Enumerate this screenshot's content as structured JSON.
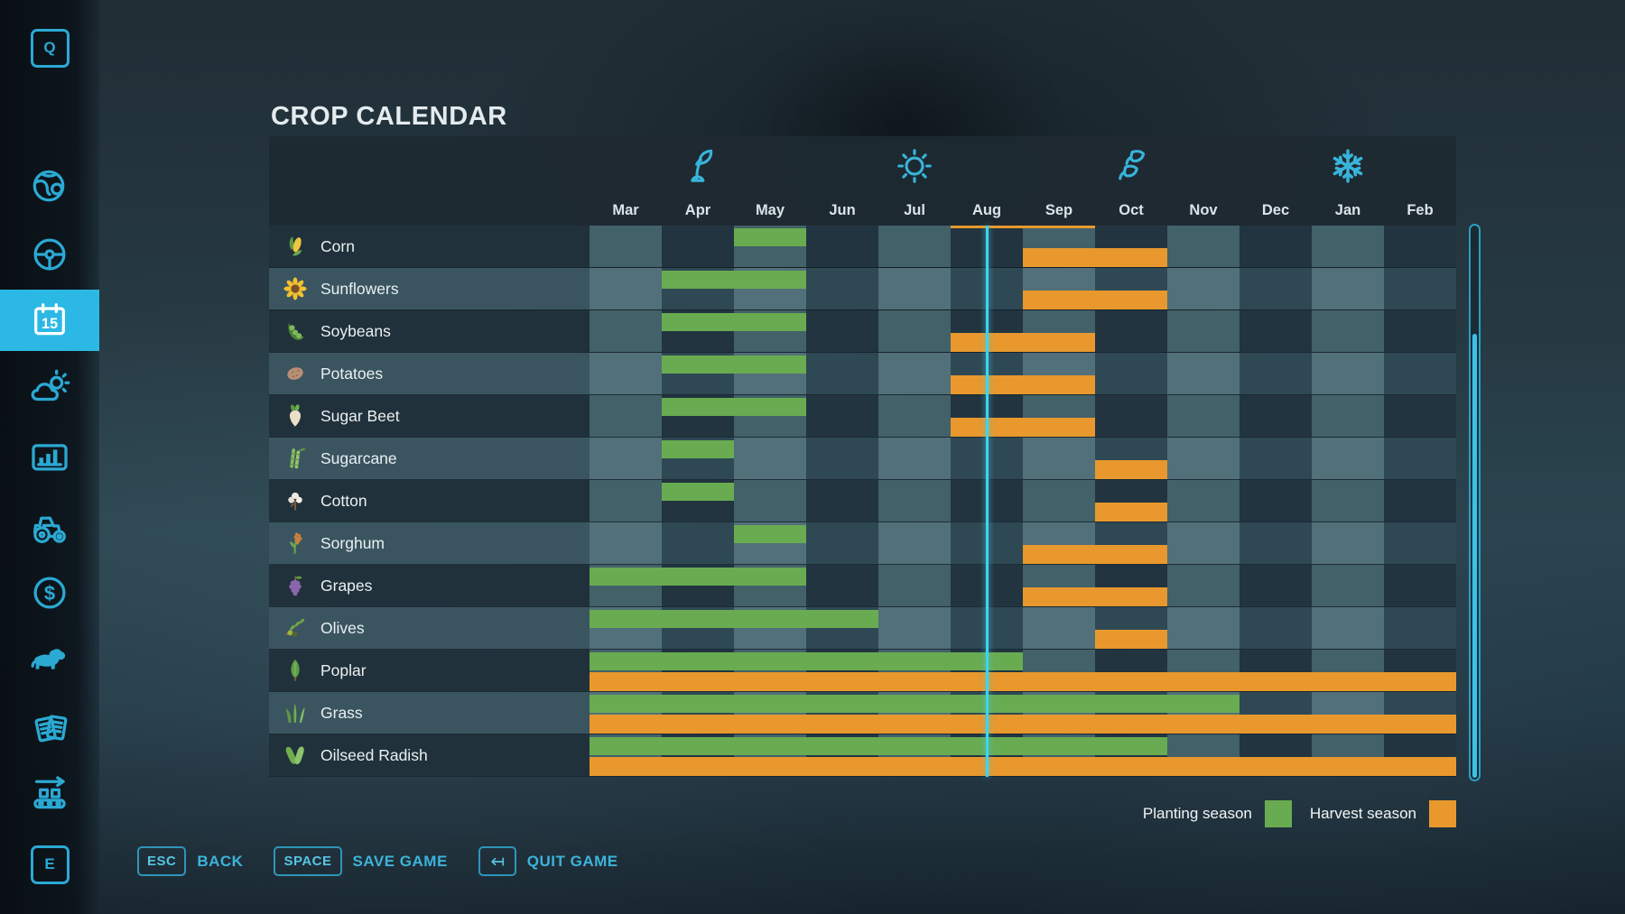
{
  "app": {
    "title": "CROP CALENDAR"
  },
  "sidebar": {
    "items": [
      {
        "icon": "q-key-icon",
        "key": "Q"
      },
      {
        "icon": "map-globe-icon"
      },
      {
        "icon": "steering-wheel-icon"
      },
      {
        "icon": "calendar-icon",
        "badge": "15",
        "active": true
      },
      {
        "icon": "weather-icon"
      },
      {
        "icon": "statistics-icon"
      },
      {
        "icon": "tractor-icon"
      },
      {
        "icon": "finances-icon"
      },
      {
        "icon": "animals-icon"
      },
      {
        "icon": "contracts-icon"
      },
      {
        "icon": "production-icon"
      },
      {
        "icon": "e-key-icon",
        "key": "E"
      }
    ]
  },
  "calendar": {
    "months": [
      "Mar",
      "Apr",
      "May",
      "Jun",
      "Jul",
      "Aug",
      "Sep",
      "Oct",
      "Nov",
      "Dec",
      "Jan",
      "Feb"
    ],
    "seasons": [
      {
        "name": "spring",
        "icon": "sprout-icon",
        "month": "Apr"
      },
      {
        "name": "summer",
        "icon": "sun-icon",
        "month": "Jul"
      },
      {
        "name": "autumn",
        "icon": "falling-leaves-icon",
        "month": "Oct"
      },
      {
        "name": "winter",
        "icon": "snowflake-icon",
        "month": "Jan"
      }
    ],
    "partial_row_top": {
      "harvest": {
        "from": "Aug",
        "to": "Sep"
      }
    },
    "current_time": {
      "month": "Aug",
      "fraction": 0.5
    },
    "crops": [
      {
        "name": "Corn",
        "icon": "corn-icon",
        "planting": {
          "from": "May",
          "to": "May"
        },
        "harvest": {
          "from": "Sep",
          "to": "Oct"
        }
      },
      {
        "name": "Sunflowers",
        "icon": "sunflower-icon",
        "planting": {
          "from": "Apr",
          "to": "May"
        },
        "harvest": {
          "from": "Sep",
          "to": "Oct"
        }
      },
      {
        "name": "Soybeans",
        "icon": "soybean-icon",
        "planting": {
          "from": "Apr",
          "to": "May"
        },
        "harvest": {
          "from": "Aug",
          "to": "Sep"
        }
      },
      {
        "name": "Potatoes",
        "icon": "potato-icon",
        "planting": {
          "from": "Apr",
          "to": "May"
        },
        "harvest": {
          "from": "Aug",
          "to": "Sep"
        }
      },
      {
        "name": "Sugar Beet",
        "icon": "sugar-beet-icon",
        "planting": {
          "from": "Apr",
          "to": "May"
        },
        "harvest": {
          "from": "Aug",
          "to": "Sep"
        }
      },
      {
        "name": "Sugarcane",
        "icon": "sugarcane-icon",
        "planting": {
          "from": "Apr",
          "to": "Apr"
        },
        "harvest": {
          "from": "Oct",
          "to": "Oct"
        }
      },
      {
        "name": "Cotton",
        "icon": "cotton-icon",
        "planting": {
          "from": "Apr",
          "to": "Apr"
        },
        "harvest": {
          "from": "Oct",
          "to": "Oct"
        }
      },
      {
        "name": "Sorghum",
        "icon": "sorghum-icon",
        "planting": {
          "from": "May",
          "to": "May"
        },
        "harvest": {
          "from": "Sep",
          "to": "Oct"
        }
      },
      {
        "name": "Grapes",
        "icon": "grapes-icon",
        "planting": {
          "from": "Mar",
          "to": "May"
        },
        "harvest": {
          "from": "Sep",
          "to": "Oct"
        }
      },
      {
        "name": "Olives",
        "icon": "olive-icon",
        "planting": {
          "from": "Mar",
          "to": "Jun"
        },
        "harvest": {
          "from": "Oct",
          "to": "Oct"
        }
      },
      {
        "name": "Poplar",
        "icon": "poplar-icon",
        "planting": {
          "from": "Mar",
          "to": "Aug"
        },
        "harvest": {
          "from": "Mar",
          "to": "Feb"
        }
      },
      {
        "name": "Grass",
        "icon": "grass-icon",
        "planting": {
          "from": "Mar",
          "to": "Nov"
        },
        "harvest": {
          "from": "Mar",
          "to": "Feb"
        }
      },
      {
        "name": "Oilseed Radish",
        "icon": "oilseed-radish-icon",
        "planting": {
          "from": "Mar",
          "to": "Oct"
        },
        "harvest": {
          "from": "Mar",
          "to": "Feb"
        }
      }
    ]
  },
  "legend": {
    "planting_label": "Planting season",
    "planting_color": "#69ab51",
    "harvest_label": "Harvest season",
    "harvest_color": "#e8982c"
  },
  "footer": {
    "buttons": [
      {
        "key": "ESC",
        "label": "BACK"
      },
      {
        "key": "SPACE",
        "label": "SAVE GAME"
      },
      {
        "key_icon": "return-arrow-icon",
        "label": "QUIT GAME"
      }
    ]
  },
  "colors": {
    "accent": "#35b0d6",
    "active_tab": "#2bb8e4",
    "current_time_line": "#3fd4f0"
  }
}
